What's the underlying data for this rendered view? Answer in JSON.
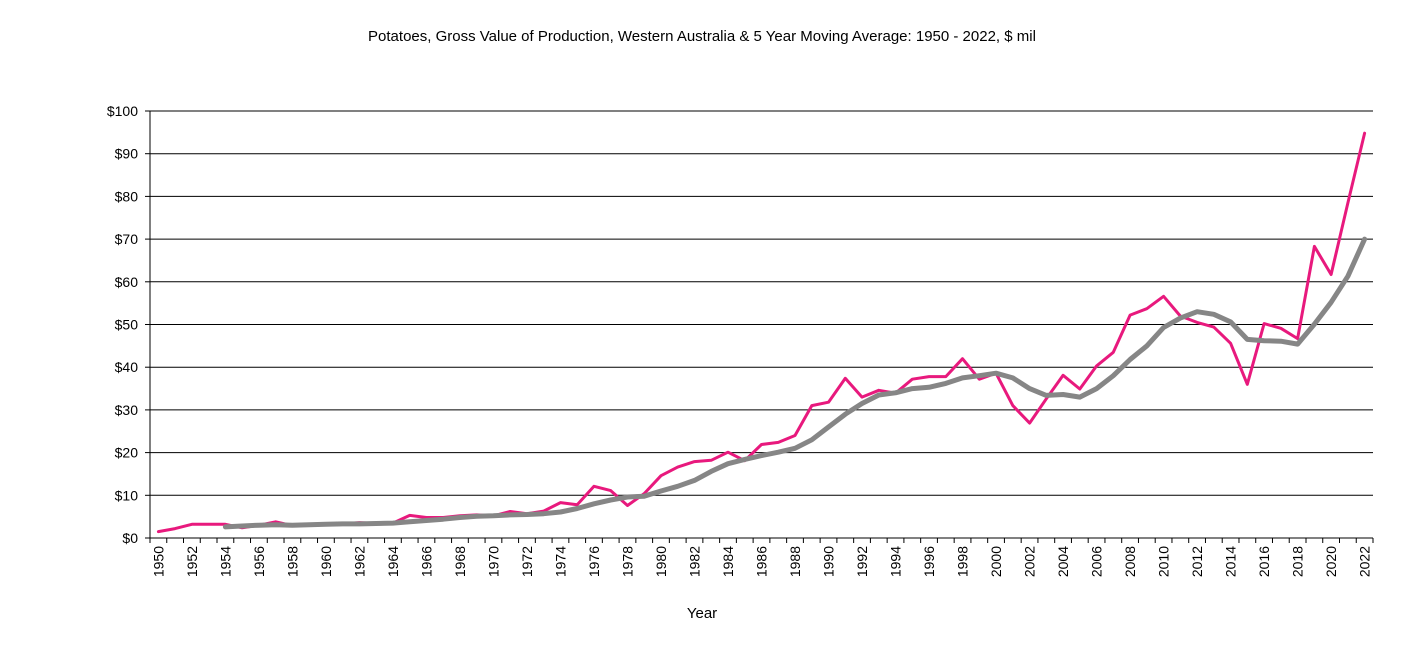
{
  "chart_data": {
    "type": "line",
    "title": "Potatoes, Gross Value of Production, Western Australia & 5 Year Moving Average: 1950 - 2022, $ mil",
    "xlabel": "Year",
    "ylabel": "",
    "ylim": [
      0,
      100
    ],
    "yticks": [
      "$0",
      "$10",
      "$20",
      "$30",
      "$40",
      "$50",
      "$60",
      "$70",
      "$80",
      "$90",
      "$100"
    ],
    "xticks": [
      "1950",
      "1952",
      "1954",
      "1956",
      "1958",
      "1960",
      "1962",
      "1964",
      "1966",
      "1968",
      "1970",
      "1972",
      "1974",
      "1976",
      "1978",
      "1980",
      "1982",
      "1984",
      "1986",
      "1988",
      "1990",
      "1992",
      "1994",
      "1996",
      "1998",
      "2000",
      "2002",
      "2004",
      "2006",
      "2008",
      "2010",
      "2012",
      "2014",
      "2016",
      "2018",
      "2020",
      "2022"
    ],
    "grid": true,
    "x": [
      1950,
      1951,
      1952,
      1953,
      1954,
      1955,
      1956,
      1957,
      1958,
      1959,
      1960,
      1961,
      1962,
      1963,
      1964,
      1965,
      1966,
      1967,
      1968,
      1969,
      1970,
      1971,
      1972,
      1973,
      1974,
      1975,
      1976,
      1977,
      1978,
      1979,
      1980,
      1981,
      1982,
      1983,
      1984,
      1985,
      1986,
      1987,
      1988,
      1989,
      1990,
      1991,
      1992,
      1993,
      1994,
      1995,
      1996,
      1997,
      1998,
      1999,
      2000,
      2001,
      2002,
      2003,
      2004,
      2005,
      2006,
      2007,
      2008,
      2009,
      2010,
      2011,
      2012,
      2013,
      2014,
      2015,
      2016,
      2017,
      2018,
      2019,
      2020,
      2021,
      2022
    ],
    "series": [
      {
        "name": "Gross Value of Production",
        "color": "#e8197d",
        "values": [
          1.5,
          2.2,
          3.2,
          3.2,
          3.2,
          2.4,
          3.0,
          3.8,
          2.9,
          3.0,
          3.3,
          3.3,
          3.6,
          3.4,
          3.5,
          5.3,
          4.8,
          4.8,
          5.2,
          5.4,
          5.2,
          6.2,
          5.7,
          6.3,
          8.3,
          7.8,
          12.1,
          11.1,
          7.6,
          10.4,
          14.6,
          16.6,
          17.9,
          18.2,
          20.1,
          18.1,
          21.9,
          22.4,
          24.0,
          31.0,
          31.8,
          37.4,
          33.0,
          34.6,
          33.9,
          37.2,
          37.8,
          37.8,
          42.0,
          37.2,
          38.6,
          31.0,
          26.9,
          32.6,
          38.1,
          34.9,
          40.3,
          43.5,
          52.2,
          53.7,
          56.6,
          52.0,
          50.5,
          49.4,
          45.6,
          36.0,
          50.2,
          49.1,
          46.7,
          68.3,
          61.7,
          78.5,
          94.8
        ]
      },
      {
        "name": "5 Year Moving Average",
        "color": "#868686",
        "values": [
          null,
          null,
          null,
          null,
          2.6,
          2.8,
          3.0,
          3.1,
          3.0,
          3.1,
          3.2,
          3.3,
          3.3,
          3.4,
          3.5,
          3.8,
          4.1,
          4.4,
          4.8,
          5.1,
          5.2,
          5.4,
          5.5,
          5.7,
          6.1,
          6.9,
          8.0,
          8.9,
          9.6,
          9.8,
          11.0,
          12.1,
          13.5,
          15.6,
          17.4,
          18.4,
          19.3,
          20.1,
          21.0,
          23.0,
          26.0,
          29.0,
          31.5,
          33.5,
          34.0,
          35.0,
          35.3,
          36.2,
          37.5,
          38.0,
          38.6,
          37.5,
          35.0,
          33.4,
          33.6,
          33.0,
          35.0,
          38.0,
          41.8,
          45.0,
          49.3,
          51.5,
          53.0,
          52.4,
          50.6,
          46.5,
          46.2,
          46.1,
          45.4,
          50.1,
          55.2,
          61.3,
          70.0
        ]
      }
    ]
  }
}
